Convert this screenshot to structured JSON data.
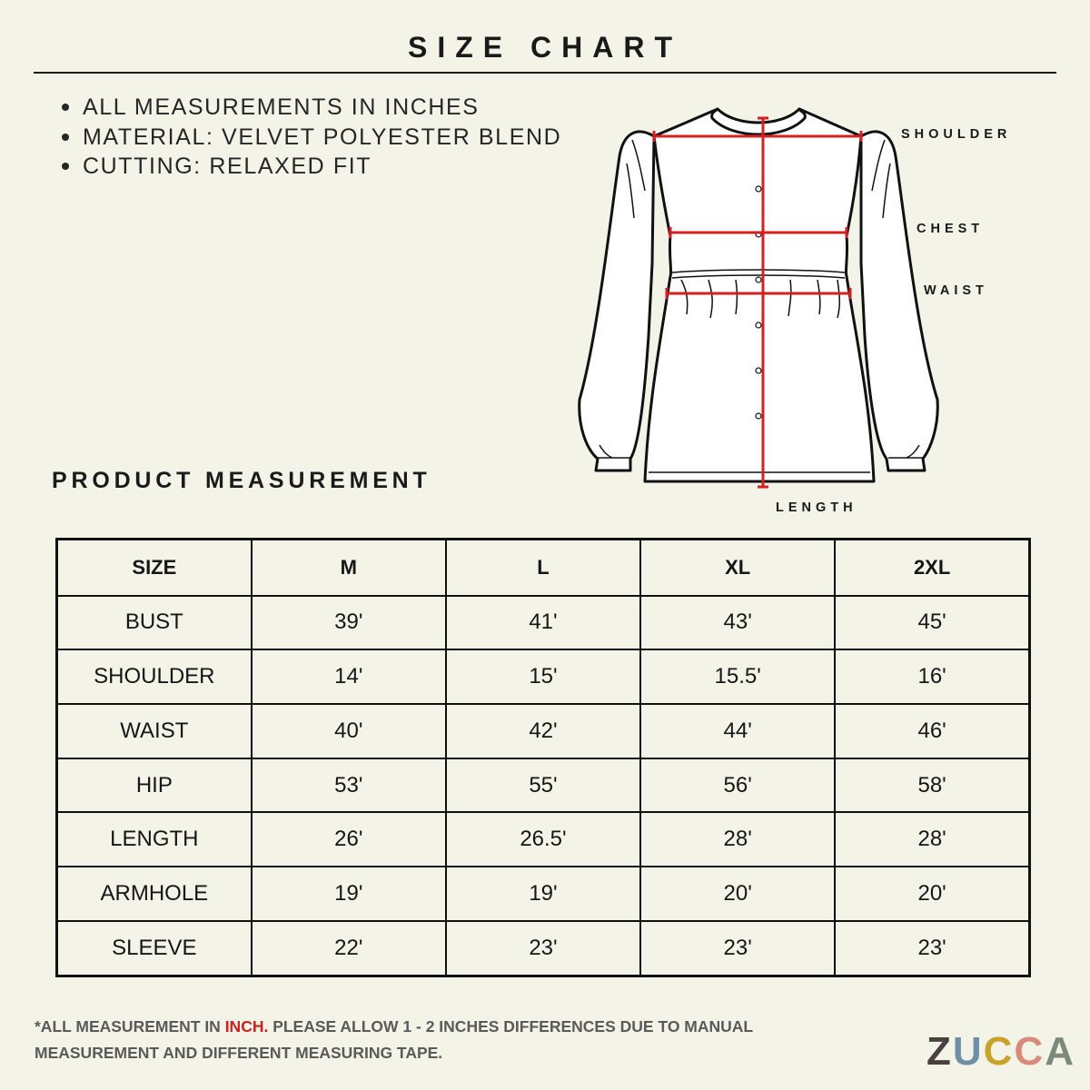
{
  "header": {
    "title": "SIZE CHART"
  },
  "notes": [
    "ALL MEASUREMENTS IN INCHES",
    "MATERIAL: VELVET POLYESTER BLEND",
    "CUTTING: RELAXED FIT"
  ],
  "diagram": {
    "labels": {
      "shoulder": "SHOULDER",
      "chest": "CHEST",
      "waist": "WAIST",
      "length": "LENGTH"
    },
    "colors": {
      "outline": "#111111",
      "measure_line": "#d42020"
    }
  },
  "section": {
    "title": "PRODUCT MEASUREMENT"
  },
  "table": {
    "headers": [
      "SIZE",
      "M",
      "L",
      "XL",
      "2XL"
    ],
    "rows": [
      [
        "BUST",
        "39'",
        "41'",
        "43'",
        "45'"
      ],
      [
        "SHOULDER",
        "14'",
        "15'",
        "15.5'",
        "16'"
      ],
      [
        "WAIST",
        "40'",
        "42'",
        "44'",
        "46'"
      ],
      [
        "HIP",
        "53'",
        "55'",
        "56'",
        "58'"
      ],
      [
        "LENGTH",
        "26'",
        "26.5'",
        "28'",
        "28'"
      ],
      [
        "ARMHOLE",
        "19'",
        "19'",
        "20'",
        "20'"
      ],
      [
        "SLEEVE",
        "22'",
        "23'",
        "23'",
        "23'"
      ]
    ]
  },
  "footnote": {
    "prefix": "*ALL MEASUREMENT IN ",
    "highlight": "INCH.",
    "suffix": " PLEASE ALLOW 1 - 2 INCHES DIFFERENCES DUE TO MANUAL MEASUREMENT AND DIFFERENT MEASURING TAPE.",
    "highlight_color": "#cf2020"
  },
  "brand": {
    "letters": [
      "Z",
      "U",
      "C",
      "C",
      "A"
    ],
    "colors": [
      "#4a4040",
      "#6f8fa6",
      "#c9a227",
      "#d98a7a",
      "#7a8a7c"
    ]
  }
}
